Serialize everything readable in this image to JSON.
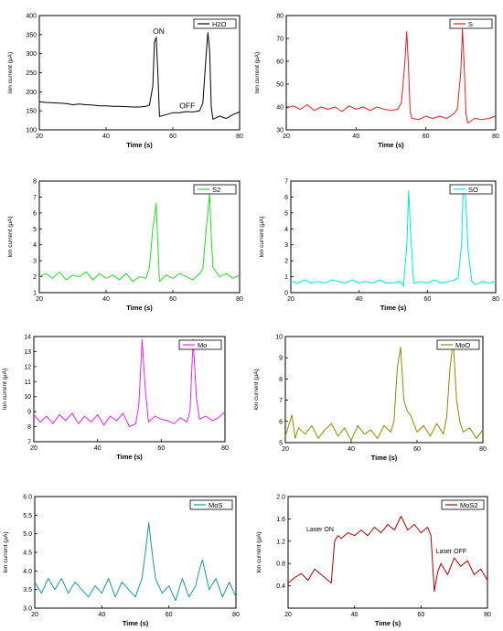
{
  "chart_data": [
    {
      "type": "line",
      "legend": "H2O",
      "color": "#000000",
      "xlabel": "Time (s)",
      "ylabel": "Ion current (μA)",
      "xlim": [
        20,
        80
      ],
      "ylim": [
        100,
        400
      ],
      "xticks": [
        20,
        40,
        60,
        80
      ],
      "yticks": [
        100,
        150,
        200,
        250,
        300,
        350,
        400
      ],
      "annotations": [
        {
          "text": "ON",
          "x": 54,
          "y": 352
        },
        {
          "text": "OFF",
          "x": 62,
          "y": 157
        }
      ],
      "x": [
        20,
        22,
        24,
        26,
        28,
        30,
        32,
        34,
        36,
        38,
        40,
        42,
        44,
        46,
        48,
        50,
        52,
        53,
        54,
        54.5,
        55,
        55.5,
        56,
        58,
        60,
        62,
        64,
        66,
        68,
        69,
        70,
        70.5,
        71,
        71.5,
        72,
        74,
        76,
        78,
        80
      ],
      "values": [
        174,
        172,
        171,
        170,
        169,
        166,
        168,
        166,
        165,
        163,
        163,
        162,
        162,
        161,
        160,
        160,
        162,
        165,
        215,
        330,
        343,
        250,
        135,
        140,
        145,
        145,
        148,
        147,
        150,
        170,
        300,
        355,
        310,
        160,
        128,
        136,
        130,
        140,
        147
      ]
    },
    {
      "type": "line",
      "legend": "S",
      "color": "#e02020",
      "xlabel": "Time (s)",
      "ylabel": "Ion current (μA)",
      "xlim": [
        20,
        80
      ],
      "ylim": [
        30,
        80
      ],
      "xticks": [
        20,
        40,
        60,
        80
      ],
      "yticks": [
        30,
        40,
        50,
        60,
        70,
        80
      ],
      "x": [
        20,
        22,
        24,
        26,
        28,
        30,
        32,
        34,
        36,
        38,
        40,
        42,
        44,
        46,
        48,
        50,
        52,
        53,
        54,
        54.5,
        55,
        55.5,
        56,
        58,
        60,
        62,
        64,
        66,
        68,
        69,
        70,
        70.5,
        71,
        71.5,
        72,
        74,
        76,
        78,
        80
      ],
      "values": [
        39.5,
        40.5,
        39,
        41,
        38.5,
        40,
        39,
        40,
        38,
        40.5,
        39,
        40,
        38.5,
        40,
        39,
        38.5,
        39,
        42,
        60,
        73,
        58,
        38,
        35,
        34.5,
        36,
        35,
        36,
        35,
        37,
        39,
        55,
        74,
        58,
        37,
        33,
        35,
        34.5,
        35,
        36
      ]
    },
    {
      "type": "line",
      "legend": "S2",
      "color": "#22dd22",
      "xlabel": "Time (s)",
      "ylabel": "Ion current (μA)",
      "xlim": [
        20,
        80
      ],
      "ylim": [
        1,
        8
      ],
      "xticks": [
        20,
        40,
        60,
        80
      ],
      "yticks": [
        1,
        2,
        3,
        4,
        5,
        6,
        7,
        8
      ],
      "x": [
        20,
        22,
        24,
        26,
        28,
        30,
        32,
        34,
        36,
        38,
        40,
        42,
        44,
        46,
        48,
        50,
        52,
        53,
        54,
        55,
        55.5,
        56,
        58,
        60,
        62,
        64,
        66,
        68,
        69,
        70,
        71,
        71.5,
        72,
        74,
        76,
        78,
        80
      ],
      "values": [
        2.0,
        2.2,
        1.9,
        2.3,
        1.8,
        2.1,
        2.0,
        2.3,
        1.8,
        2.2,
        1.9,
        2.1,
        1.8,
        2.2,
        1.7,
        2.0,
        1.9,
        2.6,
        5.0,
        6.6,
        4.0,
        1.7,
        2.1,
        1.9,
        2.2,
        2.0,
        1.8,
        2.2,
        2.5,
        5.0,
        7.2,
        4.5,
        2.6,
        2.0,
        2.2,
        1.9,
        2.1
      ]
    },
    {
      "type": "line",
      "legend": "SO",
      "color": "#00e5e5",
      "xlabel": "Time (s)",
      "ylabel": "Ion current (μA)",
      "xlim": [
        20,
        80
      ],
      "ylim": [
        0,
        7
      ],
      "xticks": [
        20,
        40,
        60,
        80
      ],
      "yticks": [
        0,
        1,
        2,
        3,
        4,
        5,
        6,
        7
      ],
      "x": [
        20,
        22,
        24,
        26,
        28,
        30,
        32,
        34,
        36,
        38,
        40,
        42,
        44,
        46,
        48,
        50,
        52,
        53,
        54,
        54.5,
        55,
        56,
        58,
        60,
        62,
        64,
        66,
        68,
        69,
        70,
        70.5,
        71,
        72,
        73,
        74,
        76,
        78,
        80
      ],
      "values": [
        0.7,
        0.6,
        0.8,
        0.6,
        0.7,
        0.6,
        0.8,
        0.7,
        0.6,
        0.8,
        0.6,
        0.7,
        0.6,
        0.8,
        0.6,
        0.6,
        0.7,
        0.4,
        3.0,
        6.4,
        4.0,
        0.6,
        0.7,
        0.6,
        0.8,
        0.6,
        0.7,
        0.8,
        0.9,
        3.0,
        6.6,
        6.7,
        2.5,
        0.7,
        0.5,
        0.7,
        0.6,
        0.7
      ]
    },
    {
      "type": "line",
      "legend": "Mo",
      "color": "#ee22ee",
      "xlabel": "Time (s)",
      "ylabel": "Ion current (μA)",
      "xlim": [
        20,
        80
      ],
      "ylim": [
        7,
        14
      ],
      "xticks": [
        20,
        40,
        60,
        80
      ],
      "yticks": [
        7,
        8,
        9,
        10,
        11,
        12,
        13,
        14
      ],
      "x": [
        20,
        22,
        24,
        26,
        28,
        30,
        32,
        34,
        36,
        38,
        40,
        42,
        44,
        46,
        48,
        50,
        52,
        53,
        54,
        55,
        56,
        58,
        60,
        62,
        64,
        66,
        68,
        69,
        70,
        71,
        72,
        74,
        76,
        78,
        80
      ],
      "values": [
        8.8,
        8.3,
        8.7,
        8.2,
        8.8,
        8.4,
        8.9,
        8.2,
        8.7,
        8.3,
        8.8,
        8.1,
        8.7,
        8.4,
        8.9,
        8.0,
        8.2,
        9.5,
        13.8,
        10.5,
        8.3,
        8.7,
        8.5,
        8.4,
        8.2,
        8.6,
        8.3,
        9.0,
        13.8,
        10.0,
        8.5,
        8.7,
        8.4,
        8.6,
        9.0
      ]
    },
    {
      "type": "line",
      "legend": "MoO",
      "color": "#8b8b00",
      "xlabel": "Time (s)",
      "ylabel": "Ion current (μA)",
      "xlim": [
        20,
        80
      ],
      "ylim": [
        5,
        10
      ],
      "xticks": [
        20,
        40,
        60,
        80
      ],
      "yticks": [
        5,
        6,
        7,
        8,
        9,
        10
      ],
      "x": [
        20,
        21,
        22,
        23,
        24,
        26,
        28,
        30,
        32,
        34,
        36,
        38,
        40,
        42,
        44,
        46,
        48,
        50,
        52,
        53,
        54,
        55,
        56,
        57,
        58,
        60,
        62,
        64,
        66,
        68,
        69,
        70,
        71,
        72,
        73,
        74,
        76,
        78,
        80
      ],
      "values": [
        5.3,
        5.8,
        6.3,
        5.2,
        5.7,
        5.4,
        5.8,
        5.2,
        5.6,
        5.9,
        5.3,
        5.7,
        5.1,
        5.8,
        5.4,
        5.6,
        5.2,
        5.8,
        5.5,
        6.0,
        8.5,
        9.5,
        7.0,
        6.5,
        6.3,
        5.5,
        5.8,
        5.3,
        5.9,
        5.4,
        6.2,
        8.5,
        9.8,
        7.0,
        6.0,
        5.5,
        5.7,
        5.2,
        5.6
      ]
    },
    {
      "type": "line",
      "legend": "MoS",
      "color": "#1a9999",
      "xlabel": "Time (s)",
      "ylabel": "Ion current (μA)",
      "xlim": [
        20,
        80
      ],
      "ylim": [
        3,
        6
      ],
      "xticks": [
        20,
        40,
        60,
        80
      ],
      "yticks": [
        3.0,
        3.5,
        4.0,
        4.5,
        5.0,
        5.5,
        6.0
      ],
      "x": [
        20,
        22,
        24,
        26,
        28,
        30,
        32,
        34,
        36,
        38,
        40,
        42,
        44,
        46,
        48,
        50,
        52,
        53,
        54,
        55,
        56,
        58,
        60,
        62,
        64,
        66,
        68,
        69,
        70,
        71,
        72,
        74,
        76,
        78,
        80
      ],
      "values": [
        3.7,
        3.4,
        3.8,
        3.5,
        3.8,
        3.4,
        3.7,
        3.5,
        3.3,
        3.6,
        3.4,
        3.8,
        3.3,
        3.7,
        3.5,
        3.3,
        3.8,
        4.5,
        5.3,
        4.5,
        3.8,
        3.4,
        3.6,
        3.2,
        3.8,
        3.3,
        3.6,
        4.0,
        4.3,
        3.9,
        3.5,
        3.8,
        3.3,
        3.7,
        3.3
      ]
    },
    {
      "type": "line",
      "legend": "MoS2",
      "color": "#b00000",
      "xlabel": "Time (s)",
      "ylabel": "Ion current (μA)",
      "xlim": [
        20,
        80
      ],
      "ylim": [
        0,
        2
      ],
      "xticks": [
        20,
        40,
        60,
        80
      ],
      "yticks": [
        0.4,
        0.8,
        1.2,
        1.6,
        2.0
      ],
      "annotations": [
        {
          "text": "Laser ON",
          "x": 25.5,
          "y": 1.38
        },
        {
          "text": "Laser OFF",
          "x": 64.5,
          "y": 0.98
        }
      ],
      "x": [
        20,
        22,
        24,
        26,
        28,
        30,
        32,
        33,
        34,
        35,
        36,
        38,
        40,
        42,
        44,
        46,
        48,
        50,
        52,
        54,
        56,
        58,
        60,
        62,
        63,
        64,
        65,
        66,
        68,
        70,
        72,
        74,
        76,
        78,
        80
      ],
      "values": [
        0.45,
        0.55,
        0.62,
        0.5,
        0.7,
        0.6,
        0.5,
        0.45,
        1.2,
        1.3,
        1.25,
        1.35,
        1.3,
        1.4,
        1.3,
        1.45,
        1.35,
        1.5,
        1.4,
        1.65,
        1.4,
        1.5,
        1.35,
        1.45,
        1.3,
        0.3,
        0.65,
        0.8,
        0.6,
        0.9,
        0.75,
        0.85,
        0.6,
        0.7,
        0.5
      ]
    }
  ]
}
